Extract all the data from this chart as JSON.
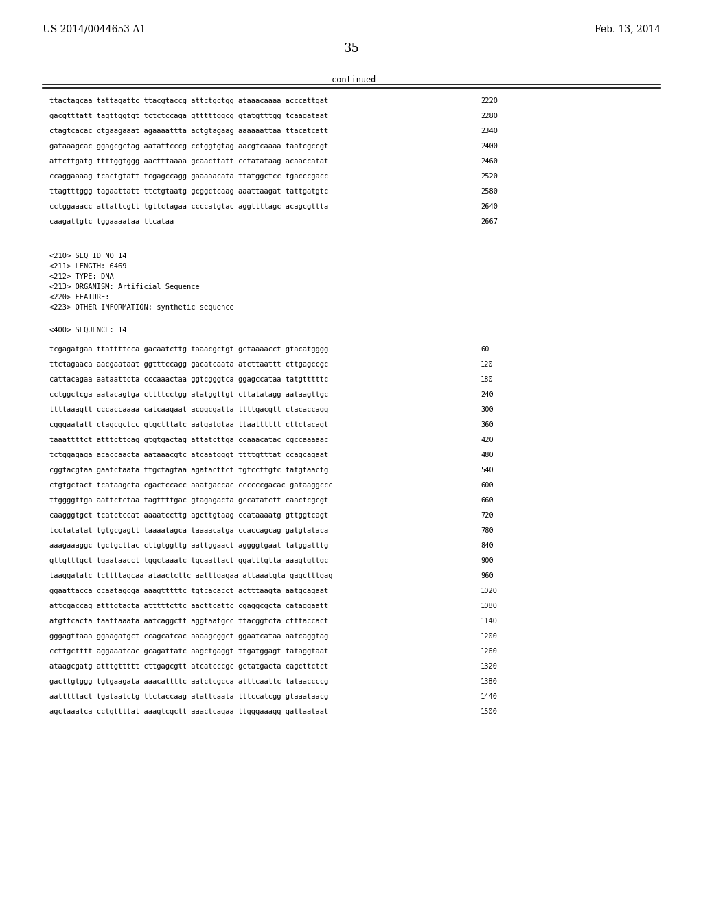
{
  "header_left": "US 2014/0044653 A1",
  "header_right": "Feb. 13, 2014",
  "page_number": "35",
  "continued_label": "-continued",
  "background_color": "#ffffff",
  "text_color": "#000000",
  "sequence_lines_top": [
    [
      "ttactagcaa tattagattc ttacgtaccg attctgctgg ataaacaaaa acccattgat",
      "2220"
    ],
    [
      "gacgtttatt tagttggtgt tctctccaga gtttttggcg gtatgtttgg tcaagataat",
      "2280"
    ],
    [
      "ctagtcacac ctgaagaaat agaaaattta actgtagaag aaaaaattaa ttacatcatt",
      "2340"
    ],
    [
      "gataaagcac ggagcgctag aatattcccg cctggtgtag aacgtcaaaa taatcgccgt",
      "2400"
    ],
    [
      "attcttgatg ttttggtggg aactttaaaa gcaacttatt cctatataag acaaccatat",
      "2460"
    ],
    [
      "ccaggaaaag tcactgtatt tcgagccagg gaaaaacata ttatggctcc tgacccgacc",
      "2520"
    ],
    [
      "ttagtttggg tagaattatt ttctgtaatg gcggctcaag aaattaagat tattgatgtc",
      "2580"
    ],
    [
      "cctggaaacc attattcgtt tgttctagaa ccccatgtac aggttttagc acagcgttta",
      "2640"
    ],
    [
      "caagattgtc tggaaaataa ttcataa",
      "2667"
    ]
  ],
  "metadata_lines": [
    "<210> SEQ ID NO 14",
    "<211> LENGTH: 6469",
    "<212> TYPE: DNA",
    "<213> ORGANISM: Artificial Sequence",
    "<220> FEATURE:",
    "<223> OTHER INFORMATION: synthetic sequence"
  ],
  "sequence_label": "<400> SEQUENCE: 14",
  "sequence_lines_bottom": [
    [
      "tcgagatgaa ttattttcca gacaatcttg taaacgctgt gctaaaacct gtacatgggg",
      "60"
    ],
    [
      "ttctagaaca aacgaataat ggtttccagg gacatcaata atcttaattt cttgagccgc",
      "120"
    ],
    [
      "cattacagaa aataattcta cccaaactaa ggtcgggtca ggagccataa tatgtttttc",
      "180"
    ],
    [
      "cctggctcga aatacagtga cttttcctgg atatggttgt cttatatagg aataagttgc",
      "240"
    ],
    [
      "ttttaaagtt cccaccaaaa catcaagaat acggcgatta ttttgacgtt ctacaccagg",
      "300"
    ],
    [
      "cgggaatatt ctagcgctcc gtgctttatc aatgatgtaa ttaatttttt cttctacagt",
      "360"
    ],
    [
      "taaattttct atttcttcag gtgtgactag attatcttga ccaaacatac cgccaaaaac",
      "420"
    ],
    [
      "tctggagaga acaccaacta aataaacgtc atcaatgggt ttttgtttat ccagcagaat",
      "480"
    ],
    [
      "cggtacgtaa gaatctaata ttgctagtaa agatacttct tgtccttgtc tatgtaactg",
      "540"
    ],
    [
      "ctgtgctact tcataagcta cgactccacc aaatgaccac ccccccgacac gataaggccc",
      "600"
    ],
    [
      "ttggggttga aattctctaa tagttttgac gtagagacta gccatatctt caactcgcgt",
      "660"
    ],
    [
      "caagggtgct tcatctccat aaaatccttg agcttgtaag ccataaaatg gttggtcagt",
      "720"
    ],
    [
      "tcctatatat tgtgcgagtt taaaatagca taaaacatga ccaccagcag gatgtataca",
      "780"
    ],
    [
      "aaagaaaggc tgctgcttac cttgtggttg aattggaact aggggtgaat tatggatttg",
      "840"
    ],
    [
      "gttgtttgct tgaataacct tggctaaatc tgcaattact ggatttgtta aaagtgttgc",
      "900"
    ],
    [
      "taaggatatc tcttttagcaa ataactcttc aatttgagaa attaaatgta gagctttgag",
      "960"
    ],
    [
      "ggaattacca ccaatagcga aaagtttttc tgtcacacct actttaagta aatgcagaat",
      "1020"
    ],
    [
      "attcgaccag atttgtacta atttttcttc aacttcattc cgaggcgcta cataggaatt",
      "1080"
    ],
    [
      "atgttcacta taattaaata aatcaggctt aggtaatgcc ttacggtcta ctttaccact",
      "1140"
    ],
    [
      "gggagttaaa ggaagatgct ccagcatcac aaaagcggct ggaatcataa aatcaggtag",
      "1200"
    ],
    [
      "ccttgctttt aggaaatcac gcagattatc aagctgaggt ttgatggagt tataggtaat",
      "1260"
    ],
    [
      "ataagcgatg atttgttttt cttgagcgtt atcatcccgc gctatgacta cagcttctct",
      "1320"
    ],
    [
      "gacttgtggg tgtgaagata aaacattttc aatctcgcca atttcaattc tataaccccg",
      "1380"
    ],
    [
      "aatttttact tgataatctg ttctaccaag atattcaata tttccatcgg gtaaataacg",
      "1440"
    ],
    [
      "agctaaatca cctgttttat aaagtcgctt aaactcagaa ttgggaaagg gattaataat",
      "1500"
    ]
  ]
}
